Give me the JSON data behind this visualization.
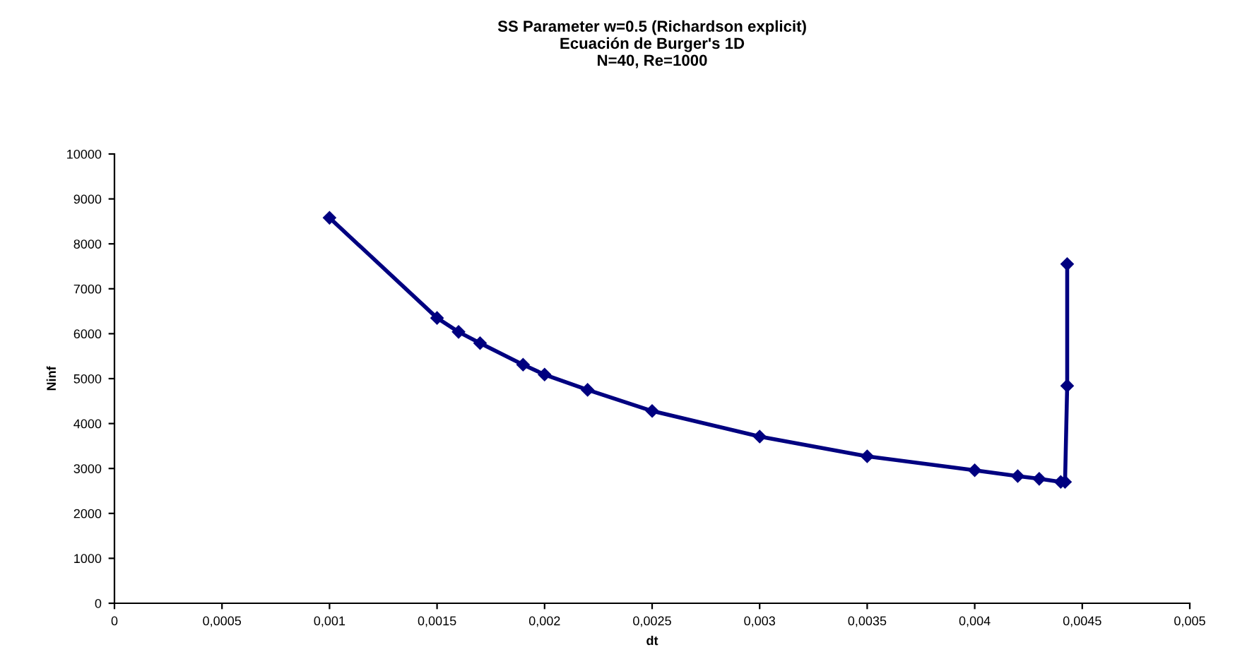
{
  "chart_data": {
    "type": "line",
    "title": "SS Parameter w=0.5 (Richardson explicit)\nEcuación de Burger's 1D\nN=40, Re=1000",
    "xlabel": "dt",
    "ylabel": "Ninf",
    "x": [
      0.001,
      0.0015,
      0.0016,
      0.0017,
      0.0019,
      0.002,
      0.0022,
      0.0025,
      0.003,
      0.0035,
      0.004,
      0.0042,
      0.0043,
      0.0044,
      0.00442,
      0.00443,
      0.00443
    ],
    "series": [
      {
        "color": "#000080",
        "values": [
          8580,
          6350,
          6040,
          5790,
          5310,
          5090,
          4750,
          4280,
          3710,
          3270,
          2960,
          2830,
          2770,
          2700,
          2700,
          4840,
          7550
        ]
      }
    ],
    "xlim": [
      0,
      0.005
    ],
    "xticks": [
      0,
      {
        "value": 0.0005,
        "label": "0,0005"
      },
      {
        "value": 0.001,
        "label": "0,001"
      },
      {
        "value": 0.0015,
        "label": "0,0015"
      },
      {
        "value": 0.002,
        "label": "0,002"
      },
      {
        "value": 0.0025,
        "label": "0,0025"
      },
      {
        "value": 0.003,
        "label": "0,003"
      },
      {
        "value": 0.0035,
        "label": "0,0035"
      },
      {
        "value": 0.004,
        "label": "0,004"
      },
      {
        "value": 0.0045,
        "label": "0,0045"
      },
      {
        "value": 0.005,
        "label": "0,005"
      }
    ],
    "ylim": [
      0,
      10000
    ],
    "yticks": [
      0,
      1000,
      2000,
      3000,
      4000,
      5000,
      6000,
      7000,
      8000,
      9000,
      10000
    ],
    "grid": false,
    "legend": false,
    "marker": "diamond",
    "line_style": "solid"
  }
}
